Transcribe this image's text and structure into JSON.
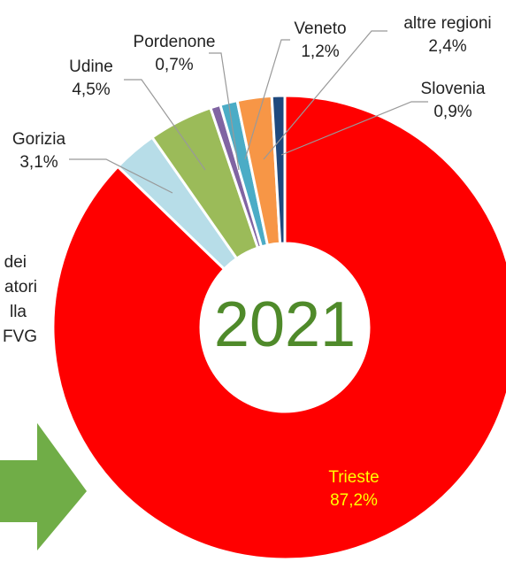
{
  "chart_data": {
    "type": "donut",
    "center_label": "2021",
    "categories": [
      "Trieste",
      "Gorizia",
      "Udine",
      "Pordenone",
      "Veneto",
      "altre regioni",
      "Slovenia"
    ],
    "values": [
      87.2,
      3.1,
      4.5,
      0.7,
      1.2,
      2.4,
      0.9
    ],
    "value_labels": [
      "87,2%",
      "3,1%",
      "4,5%",
      "0,7%",
      "1,2%",
      "2,4%",
      "0,9%"
    ],
    "colors": [
      "#ff0000",
      "#b7dde8",
      "#9bbb59",
      "#8064a2",
      "#4bacc6",
      "#f79646",
      "#1f497d"
    ],
    "annotations": [
      "dei",
      "atori",
      "lla",
      "FVG"
    ]
  }
}
